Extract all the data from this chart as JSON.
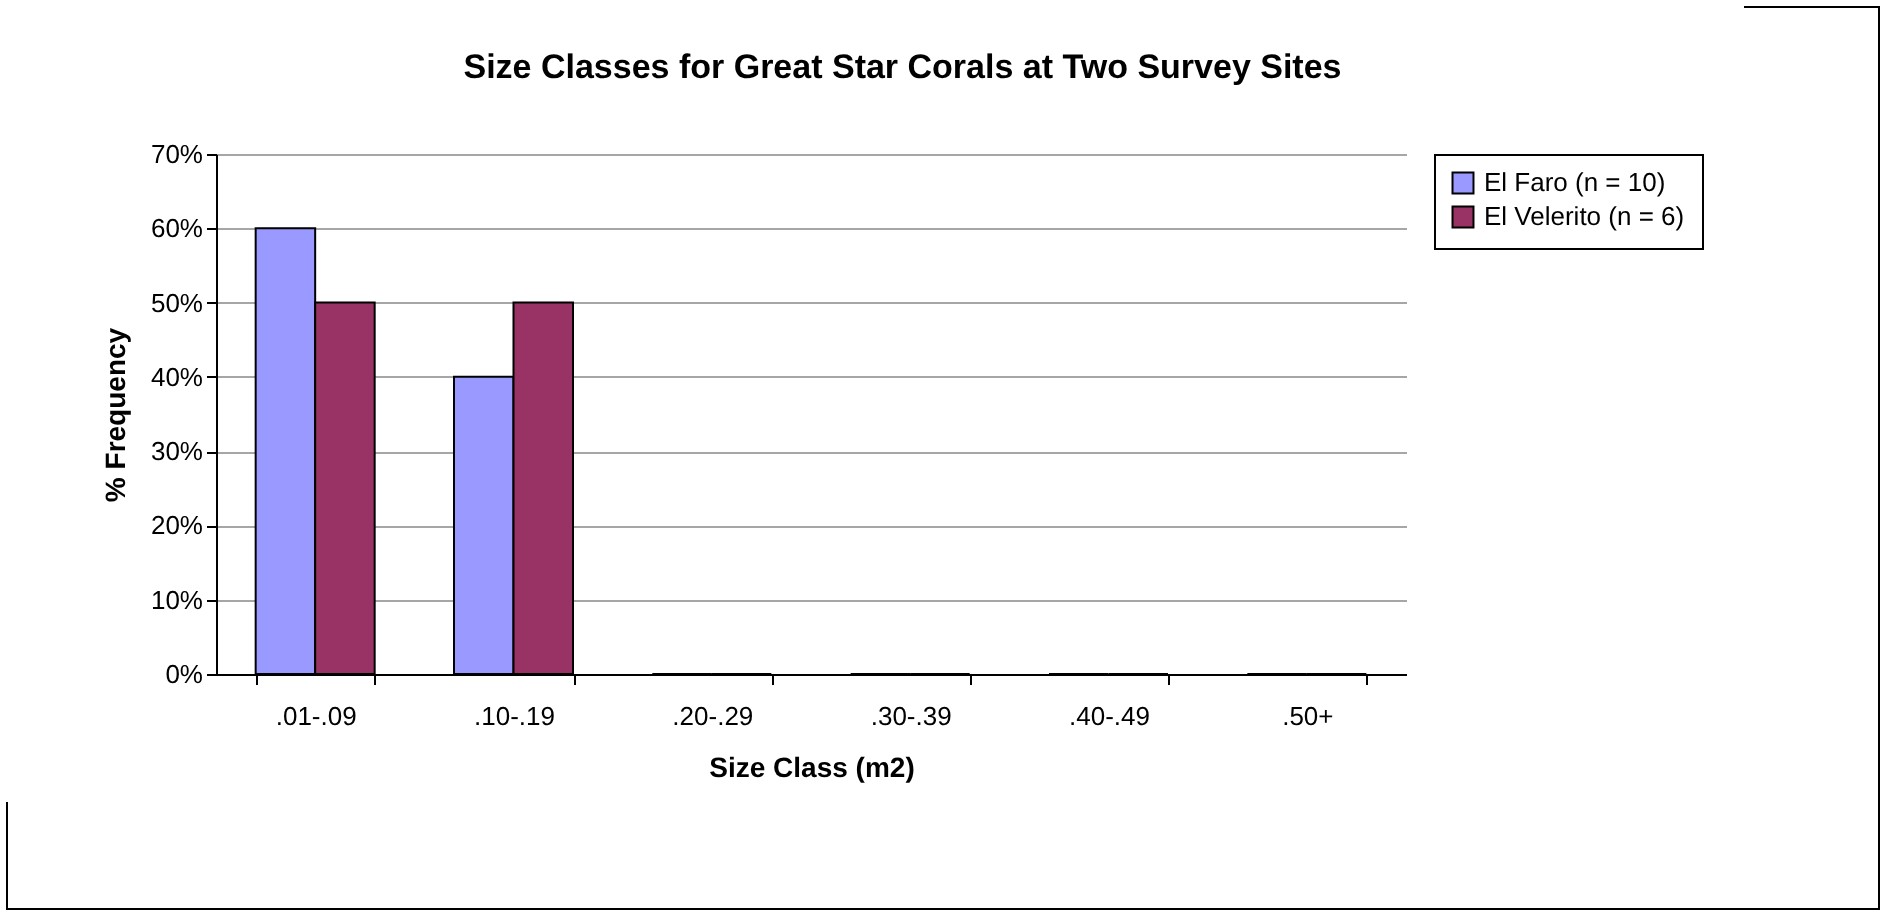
{
  "chart_data": {
    "type": "bar",
    "title": "Size Classes for Great Star Corals at Two Survey Sites",
    "xlabel": "Size Class (m2)",
    "ylabel": "% Frequency",
    "categories": [
      ".01-.09",
      ".10-.19",
      ".20-.29",
      ".30-.39",
      ".40-.49",
      ".50+"
    ],
    "series": [
      {
        "name": "El Faro (n = 10)",
        "color": "#9999ff",
        "values": [
          60,
          40,
          0,
          0,
          0,
          0
        ]
      },
      {
        "name": "El Velerito (n = 6)",
        "color": "#993366",
        "values": [
          50,
          50,
          0,
          0,
          0,
          0
        ]
      }
    ],
    "ylim": [
      0,
      70
    ],
    "yticks": [
      {
        "value": 0,
        "label": "0%"
      },
      {
        "value": 10,
        "label": "10%"
      },
      {
        "value": 20,
        "label": "20%"
      },
      {
        "value": 30,
        "label": "30%"
      },
      {
        "value": 40,
        "label": "40%"
      },
      {
        "value": 50,
        "label": "50%"
      },
      {
        "value": 60,
        "label": "60%"
      },
      {
        "value": 70,
        "label": "70%"
      }
    ],
    "grid": "y",
    "legend": "right"
  }
}
